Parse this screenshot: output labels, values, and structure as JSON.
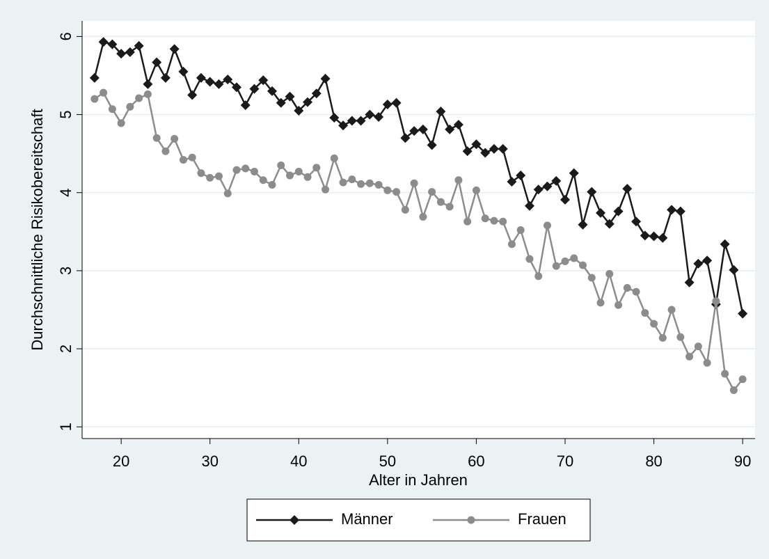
{
  "chart_data": {
    "type": "line",
    "y_label": "Durchschnittliche Risikobereitschaft",
    "x_label": "Alter in Jahren",
    "x": [
      17,
      18,
      19,
      20,
      21,
      22,
      23,
      24,
      25,
      26,
      27,
      28,
      29,
      30,
      31,
      32,
      33,
      34,
      35,
      36,
      37,
      38,
      39,
      40,
      41,
      42,
      43,
      44,
      45,
      46,
      47,
      48,
      49,
      50,
      51,
      52,
      53,
      54,
      55,
      56,
      57,
      58,
      59,
      60,
      61,
      62,
      63,
      64,
      65,
      66,
      67,
      68,
      69,
      70,
      71,
      72,
      73,
      74,
      75,
      76,
      77,
      78,
      79,
      80,
      81,
      82,
      83,
      84,
      85,
      86,
      87,
      88,
      89,
      90
    ],
    "series": [
      {
        "name": "Männer",
        "color": "#1a1a1a",
        "marker": "diamond",
        "values": [
          5.47,
          5.93,
          5.9,
          5.78,
          5.8,
          5.88,
          5.39,
          5.67,
          5.47,
          5.84,
          5.55,
          5.25,
          5.47,
          5.42,
          5.39,
          5.45,
          5.35,
          5.12,
          5.33,
          5.44,
          5.3,
          5.15,
          5.23,
          5.05,
          5.16,
          5.27,
          5.46,
          4.96,
          4.86,
          4.92,
          4.92,
          5.0,
          4.97,
          5.13,
          5.15,
          4.7,
          4.79,
          4.81,
          4.61,
          5.04,
          4.81,
          4.87,
          4.53,
          4.62,
          4.51,
          4.56,
          4.56,
          4.14,
          4.22,
          3.83,
          4.04,
          4.08,
          4.15,
          3.91,
          4.25,
          3.59,
          4.01,
          3.74,
          3.6,
          3.76,
          4.05,
          3.63,
          3.45,
          3.44,
          3.42,
          3.78,
          3.76,
          2.85,
          3.09,
          3.13,
          2.57,
          3.34,
          3.01,
          2.45
        ]
      },
      {
        "name": "Frauen",
        "color": "#8c8c8c",
        "marker": "circle",
        "values": [
          5.2,
          5.28,
          5.07,
          4.89,
          5.1,
          5.21,
          5.26,
          4.7,
          4.53,
          4.69,
          4.42,
          4.45,
          4.25,
          4.19,
          4.21,
          3.99,
          4.29,
          4.31,
          4.27,
          4.16,
          4.1,
          4.35,
          4.22,
          4.27,
          4.2,
          4.32,
          4.04,
          4.44,
          4.13,
          4.17,
          4.11,
          4.12,
          4.1,
          4.03,
          4.01,
          3.78,
          4.12,
          3.69,
          4.01,
          3.88,
          3.82,
          4.16,
          3.63,
          4.03,
          3.67,
          3.64,
          3.63,
          3.34,
          3.52,
          3.15,
          2.93,
          3.58,
          3.06,
          3.12,
          3.16,
          3.07,
          2.91,
          2.59,
          2.96,
          2.56,
          2.78,
          2.73,
          2.46,
          2.32,
          2.14,
          2.5,
          2.15,
          1.9,
          2.03,
          1.82,
          2.61,
          1.68,
          1.47,
          1.61
        ]
      }
    ],
    "xlim": [
      15.6,
      91.4
    ],
    "ylim": [
      0.85,
      6.2
    ],
    "xticks": [
      20,
      30,
      40,
      50,
      60,
      70,
      80,
      90
    ],
    "yticks": [
      1,
      2,
      3,
      4,
      5,
      6
    ],
    "grid": true
  }
}
